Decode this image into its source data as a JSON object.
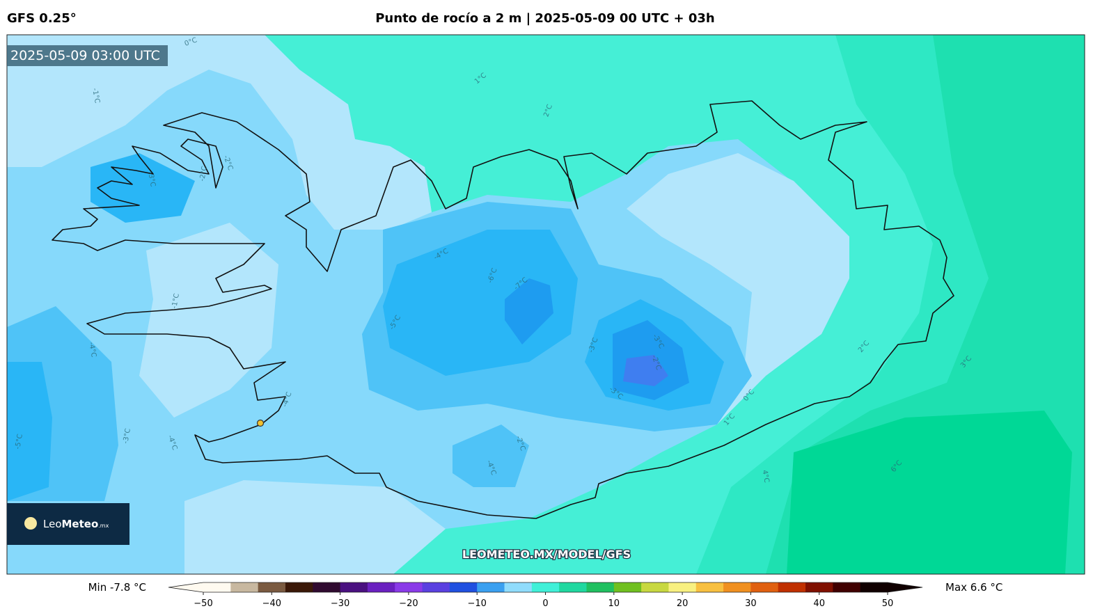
{
  "header": {
    "model": "GFS 0.25°",
    "title": "Punto de rocío a 2 m | 2025-05-09 00 UTC + 03h"
  },
  "map": {
    "timestamp": "2025-05-09 03:00 UTC",
    "watermark": "LEOMETEO.MX/MODEL/GFS",
    "contour_labels": [
      "0°C",
      "-1°C",
      "1°C",
      "2°C",
      "-2°C",
      "-3°C",
      "-2°C",
      "-1°C",
      "-4°C",
      "-3°C",
      "-4°C",
      "-5°C",
      "-4°C",
      "-4°C",
      "-6°C",
      "-7°C",
      "-5°C",
      "-3°C",
      "-3°C",
      "-2°C",
      "-3°C",
      "-2°C",
      "-4°C",
      "0°C",
      "1°C",
      "2°C",
      "3°C",
      "4°C",
      "6°C"
    ]
  },
  "logo": {
    "brand_light": "Leo",
    "brand_bold": "Meteo",
    "suffix": ".mx"
  },
  "colorbar": {
    "min_label": "Min -7.8 °C",
    "max_label": "Max 6.6 °C",
    "lim": [
      -50,
      50
    ],
    "ticks": [
      {
        "value": -50,
        "label": "−50"
      },
      {
        "value": -40,
        "label": "−40"
      },
      {
        "value": -30,
        "label": "−30"
      },
      {
        "value": -20,
        "label": "−20"
      },
      {
        "value": -10,
        "label": "−10"
      },
      0,
      10,
      20,
      30,
      40,
      50
    ],
    "colors": [
      "#fffaf0",
      "#c8b8a0",
      "#7a5a40",
      "#3a1808",
      "#300a30",
      "#4a1080",
      "#6a20c0",
      "#8a3ae8",
      "#5a40e0",
      "#2050e0",
      "#3aa0f0",
      "#90dcfc",
      "#40f0d8",
      "#20d8a0",
      "#20c060",
      "#70c020",
      "#c8d840",
      "#f8f080",
      "#f8c040",
      "#f09020",
      "#e06010",
      "#c03000",
      "#801000",
      "#400000",
      "#100000"
    ]
  }
}
